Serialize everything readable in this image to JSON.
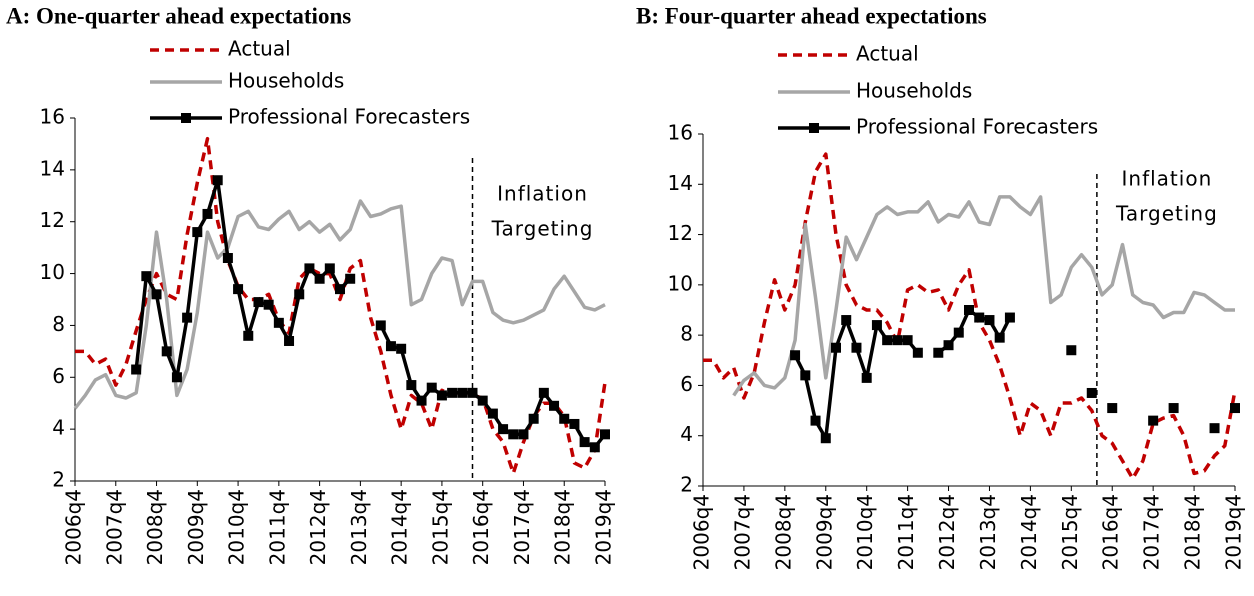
{
  "chart_data": [
    {
      "type": "line",
      "title": "A: One-quarter ahead expectations",
      "categories": [
        "2006q4",
        null,
        null,
        null,
        "2007q4",
        null,
        null,
        null,
        "2008q4",
        null,
        null,
        null,
        "2009q4",
        null,
        null,
        null,
        "2010q4",
        null,
        null,
        null,
        "2011q4",
        null,
        null,
        null,
        "2012q4",
        null,
        null,
        null,
        "2013q4",
        null,
        null,
        null,
        "2014q4",
        null,
        null,
        null,
        "2015q4",
        null,
        null,
        null,
        "2016q4",
        null,
        null,
        null,
        "2017q4",
        null,
        null,
        null,
        "2018q4",
        null,
        null,
        null,
        "2019q4"
      ],
      "ylim": [
        2,
        16
      ],
      "yticks": [
        2,
        4,
        6,
        8,
        10,
        12,
        14,
        16
      ],
      "annotation": {
        "text": [
          "Inflation",
          "Targeting"
        ],
        "x": 39
      },
      "series": [
        {
          "name": "Actual",
          "color": "#c00000",
          "style": "dashed",
          "values": [
            7.0,
            7.0,
            6.5,
            6.7,
            5.7,
            6.5,
            7.8,
            9.0,
            10.0,
            9.2,
            9.0,
            11.5,
            13.5,
            15.2,
            12.0,
            10.5,
            9.5,
            9.0,
            9.0,
            9.2,
            8.2,
            7.7,
            9.8,
            10.2,
            10.0,
            10.0,
            9.0,
            10.2,
            10.5,
            8.3,
            7.0,
            5.3,
            4.0,
            5.3,
            5.0,
            4.0,
            5.5,
            5.3,
            5.5,
            5.3,
            5.2,
            4.0,
            3.5,
            2.3,
            3.5,
            4.5,
            5.0,
            5.0,
            4.5,
            2.7,
            2.5,
            3.2,
            5.8
          ]
        },
        {
          "name": "Households",
          "color": "#a6a6a6",
          "style": "solid",
          "values": [
            4.8,
            5.3,
            5.9,
            6.1,
            5.3,
            5.2,
            5.4,
            8.0,
            11.6,
            9.0,
            5.3,
            6.3,
            8.5,
            11.6,
            10.6,
            11.0,
            12.2,
            12.4,
            11.8,
            11.7,
            12.1,
            12.4,
            11.7,
            12.0,
            11.6,
            11.9,
            11.3,
            11.7,
            12.8,
            12.2,
            12.3,
            12.5,
            12.6,
            8.8,
            9.0,
            10.0,
            10.6,
            10.5,
            8.8,
            9.7,
            9.7,
            8.5,
            8.2,
            8.1,
            8.2,
            8.4,
            8.6,
            9.4,
            9.9,
            9.3,
            8.7,
            8.6,
            8.8
          ]
        },
        {
          "name": "Professional Forecasters",
          "color": "#000000",
          "style": "solid",
          "marker": "square",
          "values": [
            null,
            null,
            null,
            null,
            null,
            null,
            6.3,
            9.9,
            9.2,
            7.0,
            6.0,
            8.3,
            11.6,
            12.3,
            13.6,
            10.6,
            9.4,
            7.6,
            8.9,
            8.8,
            8.1,
            7.4,
            9.2,
            10.2,
            9.8,
            10.2,
            9.4,
            9.8,
            null,
            null,
            8.0,
            7.2,
            7.1,
            5.7,
            5.1,
            5.6,
            5.3,
            5.4,
            5.4,
            5.4,
            5.1,
            4.6,
            4.0,
            3.8,
            3.8,
            4.4,
            5.4,
            4.9,
            4.4,
            4.2,
            3.5,
            3.3,
            3.8
          ]
        }
      ]
    },
    {
      "type": "line",
      "title": "B: Four-quarter ahead expectations",
      "categories": [
        "2006q4",
        null,
        null,
        null,
        "2007q4",
        null,
        null,
        null,
        "2008q4",
        null,
        null,
        null,
        "2009q4",
        null,
        null,
        null,
        "2010q4",
        null,
        null,
        null,
        "2011q4",
        null,
        null,
        null,
        "2012q4",
        null,
        null,
        null,
        "2013q4",
        null,
        null,
        null,
        "2014q4",
        null,
        null,
        null,
        "2015q4",
        null,
        null,
        null,
        "2016q4",
        null,
        null,
        null,
        "2017q4",
        null,
        null,
        null,
        "2018q4",
        null,
        null,
        null,
        "2019q4"
      ],
      "ylim": [
        2,
        16
      ],
      "yticks": [
        2,
        4,
        6,
        8,
        10,
        12,
        14,
        16
      ],
      "annotation": {
        "text": [
          "Inflation",
          "Targeting"
        ],
        "x": 38.5
      },
      "series": [
        {
          "name": "Actual",
          "color": "#c00000",
          "style": "dashed",
          "values": [
            7.0,
            7.0,
            6.3,
            6.7,
            5.5,
            6.5,
            8.5,
            10.2,
            9.0,
            10.0,
            12.5,
            14.5,
            15.2,
            12.0,
            10.0,
            9.2,
            9.0,
            9.0,
            8.5,
            7.7,
            9.8,
            10.0,
            9.7,
            9.8,
            9.0,
            10.0,
            10.6,
            8.5,
            7.8,
            6.8,
            5.5,
            4.0,
            5.3,
            5.0,
            4.0,
            5.3,
            5.3,
            5.5,
            5.0,
            4.0,
            3.7,
            3.0,
            2.3,
            3.0,
            4.5,
            4.7,
            4.8,
            4.0,
            2.5,
            2.6,
            3.2,
            3.6,
            5.8
          ]
        },
        {
          "name": "Households",
          "color": "#a6a6a6",
          "style": "solid",
          "values": [
            null,
            null,
            null,
            5.6,
            6.2,
            6.5,
            6.0,
            5.9,
            6.3,
            7.8,
            12.4,
            9.5,
            6.3,
            9.0,
            11.9,
            11.0,
            11.9,
            12.8,
            13.1,
            12.8,
            12.9,
            12.9,
            13.3,
            12.5,
            12.8,
            12.7,
            13.3,
            12.5,
            12.4,
            13.5,
            13.5,
            13.1,
            12.8,
            13.5,
            9.3,
            9.6,
            10.7,
            11.2,
            10.7,
            9.6,
            10.0,
            11.6,
            9.6,
            9.3,
            9.2,
            8.7,
            8.9,
            8.9,
            9.7,
            9.6,
            9.3,
            9.0,
            9.0
          ]
        },
        {
          "name": "Professional Forecasters",
          "color": "#000000",
          "style": "solid",
          "marker": "square",
          "values": [
            null,
            null,
            null,
            null,
            null,
            null,
            null,
            null,
            null,
            7.2,
            6.4,
            4.6,
            3.9,
            7.5,
            8.6,
            7.5,
            6.3,
            8.4,
            7.8,
            7.8,
            7.8,
            7.3,
            null,
            7.3,
            7.6,
            8.1,
            9.0,
            8.7,
            8.6,
            7.9,
            8.7,
            null,
            null,
            null,
            null,
            null,
            7.4,
            null,
            5.7,
            null,
            5.1,
            null,
            null,
            null,
            4.6,
            null,
            5.1,
            null,
            null,
            null,
            4.3,
            null,
            5.1
          ]
        }
      ]
    }
  ]
}
